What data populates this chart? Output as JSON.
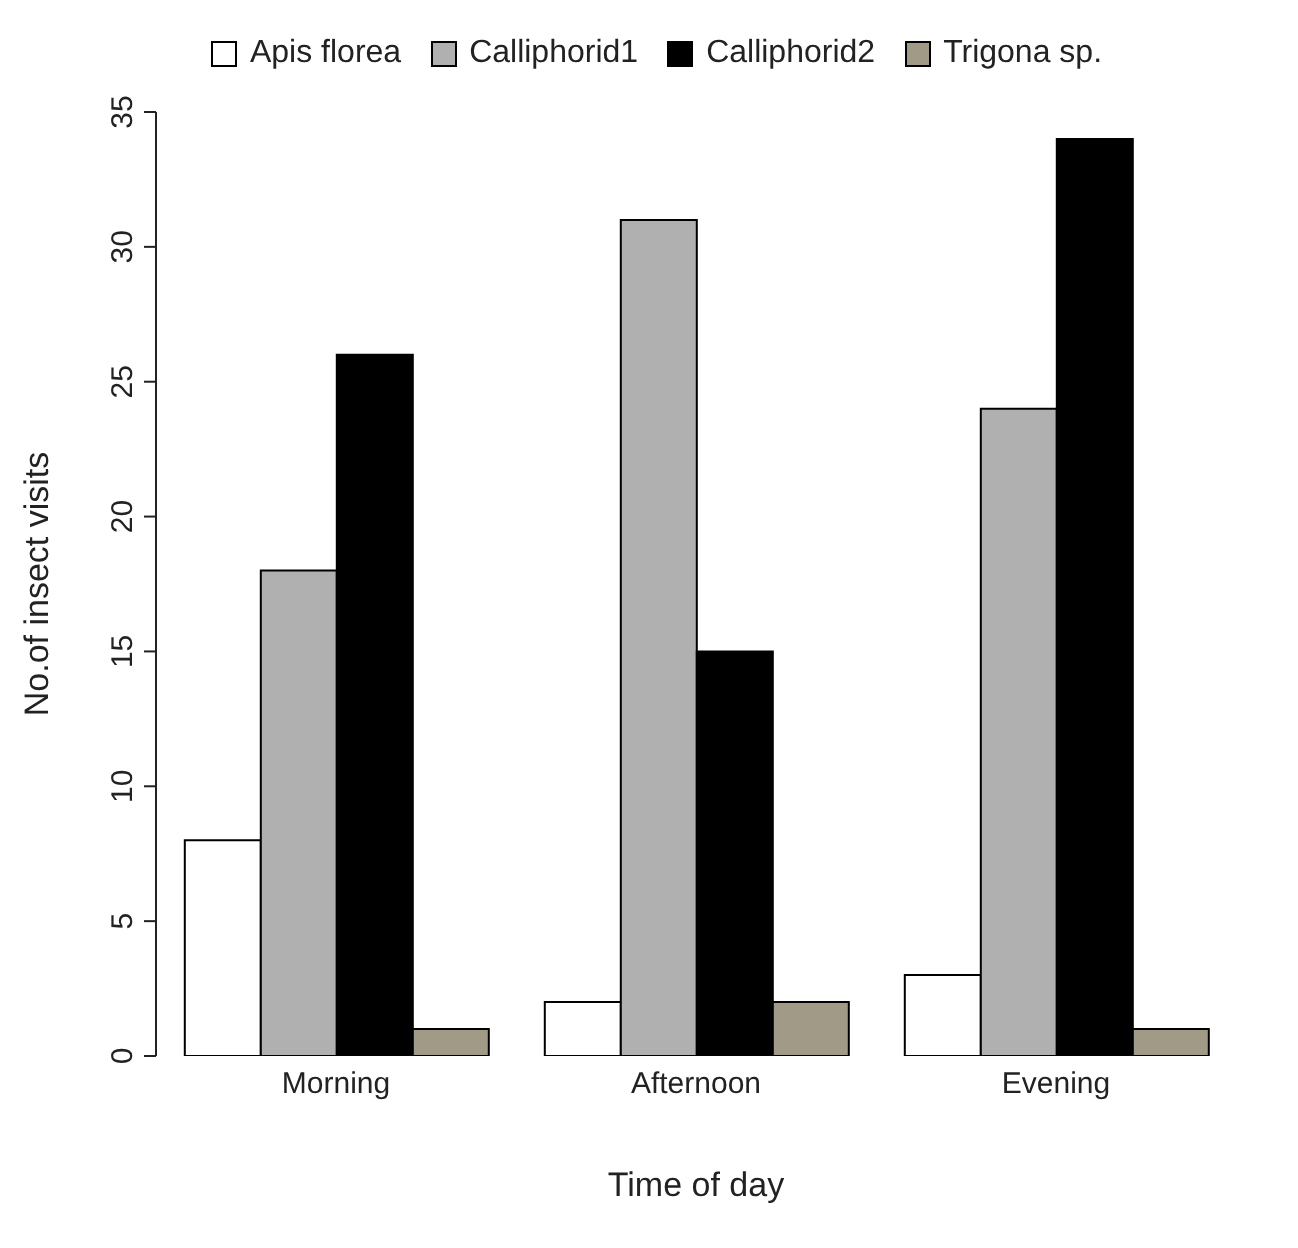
{
  "chart_data": {
    "type": "bar",
    "xlabel": "Time of day",
    "ylabel": "No.of insect visits",
    "categories": [
      "Morning",
      "Afternoon",
      "Evening"
    ],
    "series": [
      {
        "name": "Apis florea",
        "color": "#ffffff",
        "values": [
          8,
          2,
          3
        ]
      },
      {
        "name": "Calliphorid1",
        "color": "#b0b0b0",
        "values": [
          18,
          31,
          24
        ]
      },
      {
        "name": "Calliphorid2",
        "color": "#000000",
        "values": [
          26,
          15,
          34
        ]
      },
      {
        "name": "Trigona sp.",
        "color": "#a09a86",
        "values": [
          1,
          2,
          1
        ]
      }
    ],
    "ylim": [
      0,
      35
    ],
    "yticks": [
      0,
      5,
      10,
      15,
      20,
      25,
      30,
      35
    ],
    "grid": false,
    "legend": "top"
  }
}
